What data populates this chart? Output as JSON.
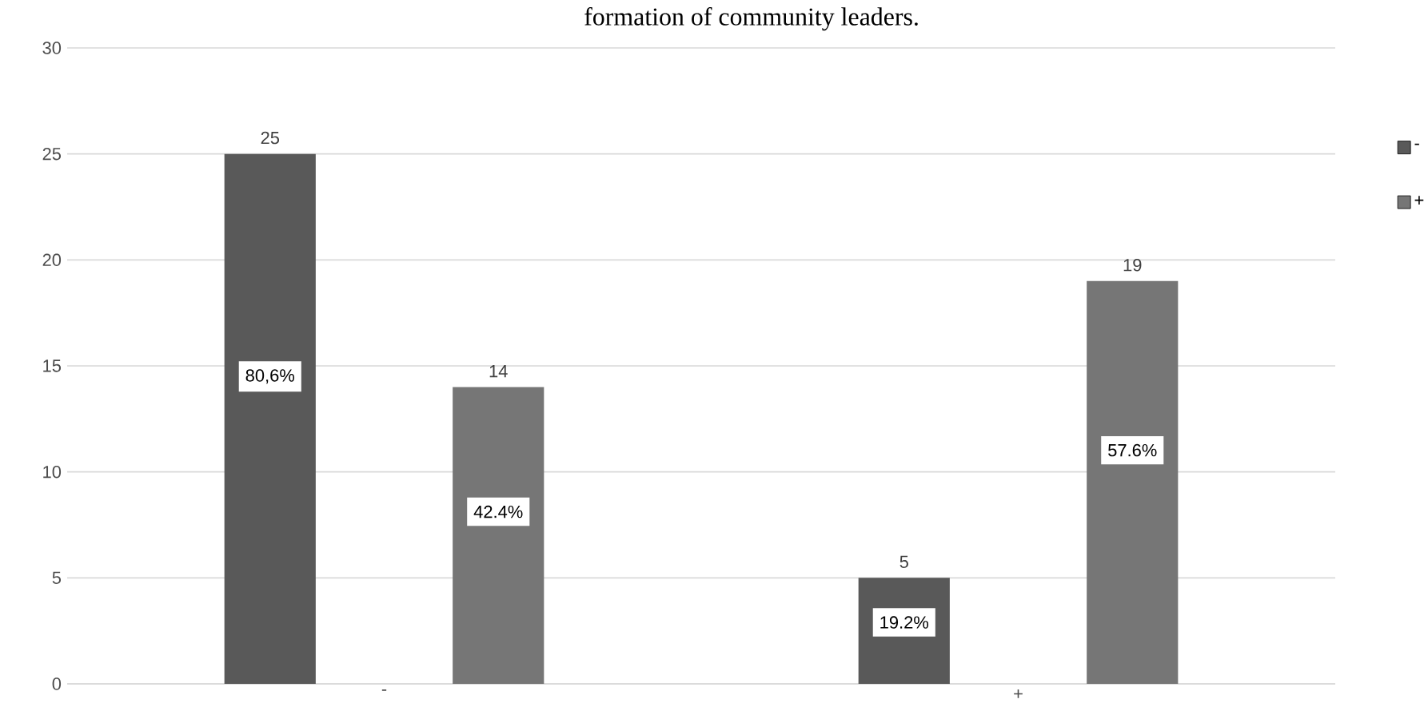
{
  "chart_data": {
    "type": "bar",
    "title": "formation of community leaders.",
    "categories": [
      "-",
      "+"
    ],
    "series": [
      {
        "name": "-",
        "color": "#595959",
        "values": [
          25,
          5
        ]
      },
      {
        "name": "+",
        "color": "#767676",
        "values": [
          14,
          19
        ]
      }
    ],
    "annotations": [
      "80,6%",
      "42.4%",
      "19.2%",
      "57.6%"
    ],
    "ylim": [
      0,
      30
    ],
    "yticks": [
      0,
      5,
      10,
      15,
      20,
      25,
      30
    ],
    "grid": "y",
    "legend": "right",
    "data_labels": true
  }
}
